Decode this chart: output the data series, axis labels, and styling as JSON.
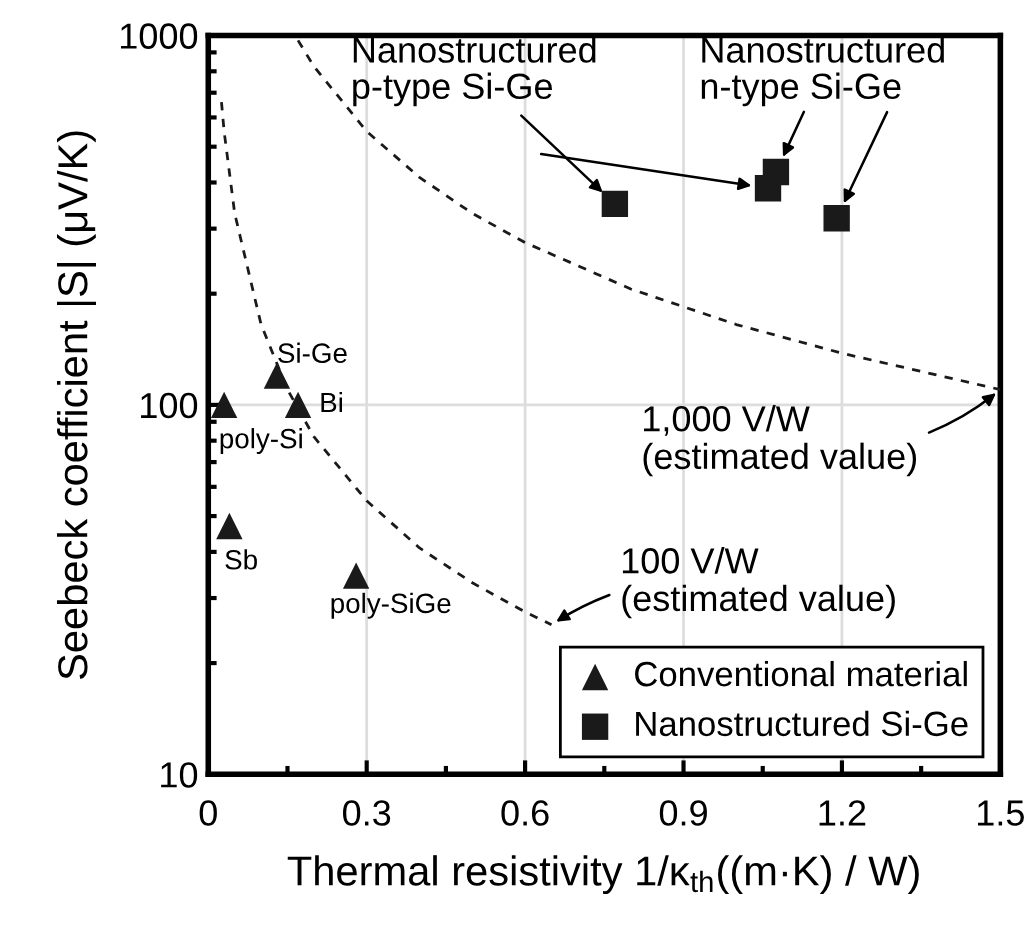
{
  "chart_data": {
    "type": "scatter",
    "xlabel": "Thermal resistivity 1/κ$_{th}$((m·K) / W)",
    "ylabel": "Seebeck coefficient |S| (μV/K)",
    "log": "y",
    "xlim": [
      0,
      1.5
    ],
    "xticks": [
      0,
      0.3,
      0.6,
      0.9,
      1.2,
      1.5
    ],
    "ylim": [
      10,
      1000
    ],
    "yticks": [
      10,
      100,
      1000
    ],
    "grid": true,
    "legend": "bottom right",
    "series": [
      {
        "name": "Conventional material",
        "marker": "triangle",
        "color": "#1a1a1a",
        "x": [
          0.03,
          0.13,
          0.17,
          0.04,
          0.28
        ],
        "values": [
          100,
          120,
          100,
          47,
          34.5
        ]
      },
      {
        "name": "Nanostructured Si-Ge",
        "marker": "square",
        "color": "#1a1a1a",
        "x": [
          0.77,
          1.06,
          1.075,
          1.19
        ],
        "values": [
          350,
          386,
          427,
          320
        ]
      },
      {
        "type": "line",
        "line_style": "dashed",
        "marker": "none",
        "color": "#1a1a1a",
        "x": [
          0.17,
          0.2,
          0.3,
          0.4,
          0.5,
          0.6,
          0.8,
          1.0,
          1.2,
          1.5
        ],
        "values": [
          970,
          825,
          550,
          413,
          330,
          275,
          206,
          165,
          138,
          110
        ]
      },
      {
        "type": "line",
        "line_style": "dashed",
        "marker": "none",
        "color": "#1a1a1a",
        "x": [
          0.025,
          0.03,
          0.05,
          0.1,
          0.15,
          0.2,
          0.3,
          0.4,
          0.5,
          0.6,
          0.65
        ],
        "values": [
          660,
          550,
          330,
          165,
          110,
          82,
          55,
          41,
          33,
          27.5,
          25.4
        ]
      }
    ],
    "annotations": [
      {
        "text": "poly-Si",
        "x": 0.03,
        "y": 100
      },
      {
        "text": "Si-Ge",
        "x": 0.13,
        "y": 120
      },
      {
        "text": "Bi",
        "x": 0.17,
        "y": 100
      },
      {
        "text": "Sb",
        "x": 0.04,
        "y": 47
      },
      {
        "text": "poly-SiGe",
        "x": 0.28,
        "y": 34.5
      },
      {
        "text": "Nanostructured\np-type Si-Ge",
        "x": 0.77,
        "y": 350
      },
      {
        "text": "Nanostructured\nn-type Si-Ge",
        "x": 1.075,
        "y": 427
      },
      {
        "text": "1,000 V/W\n(estimated value)",
        "x": 1.5,
        "y": 110
      },
      {
        "text": "100 V/W\n(estimated value)",
        "x": 0.65,
        "y": 25.4
      }
    ]
  }
}
